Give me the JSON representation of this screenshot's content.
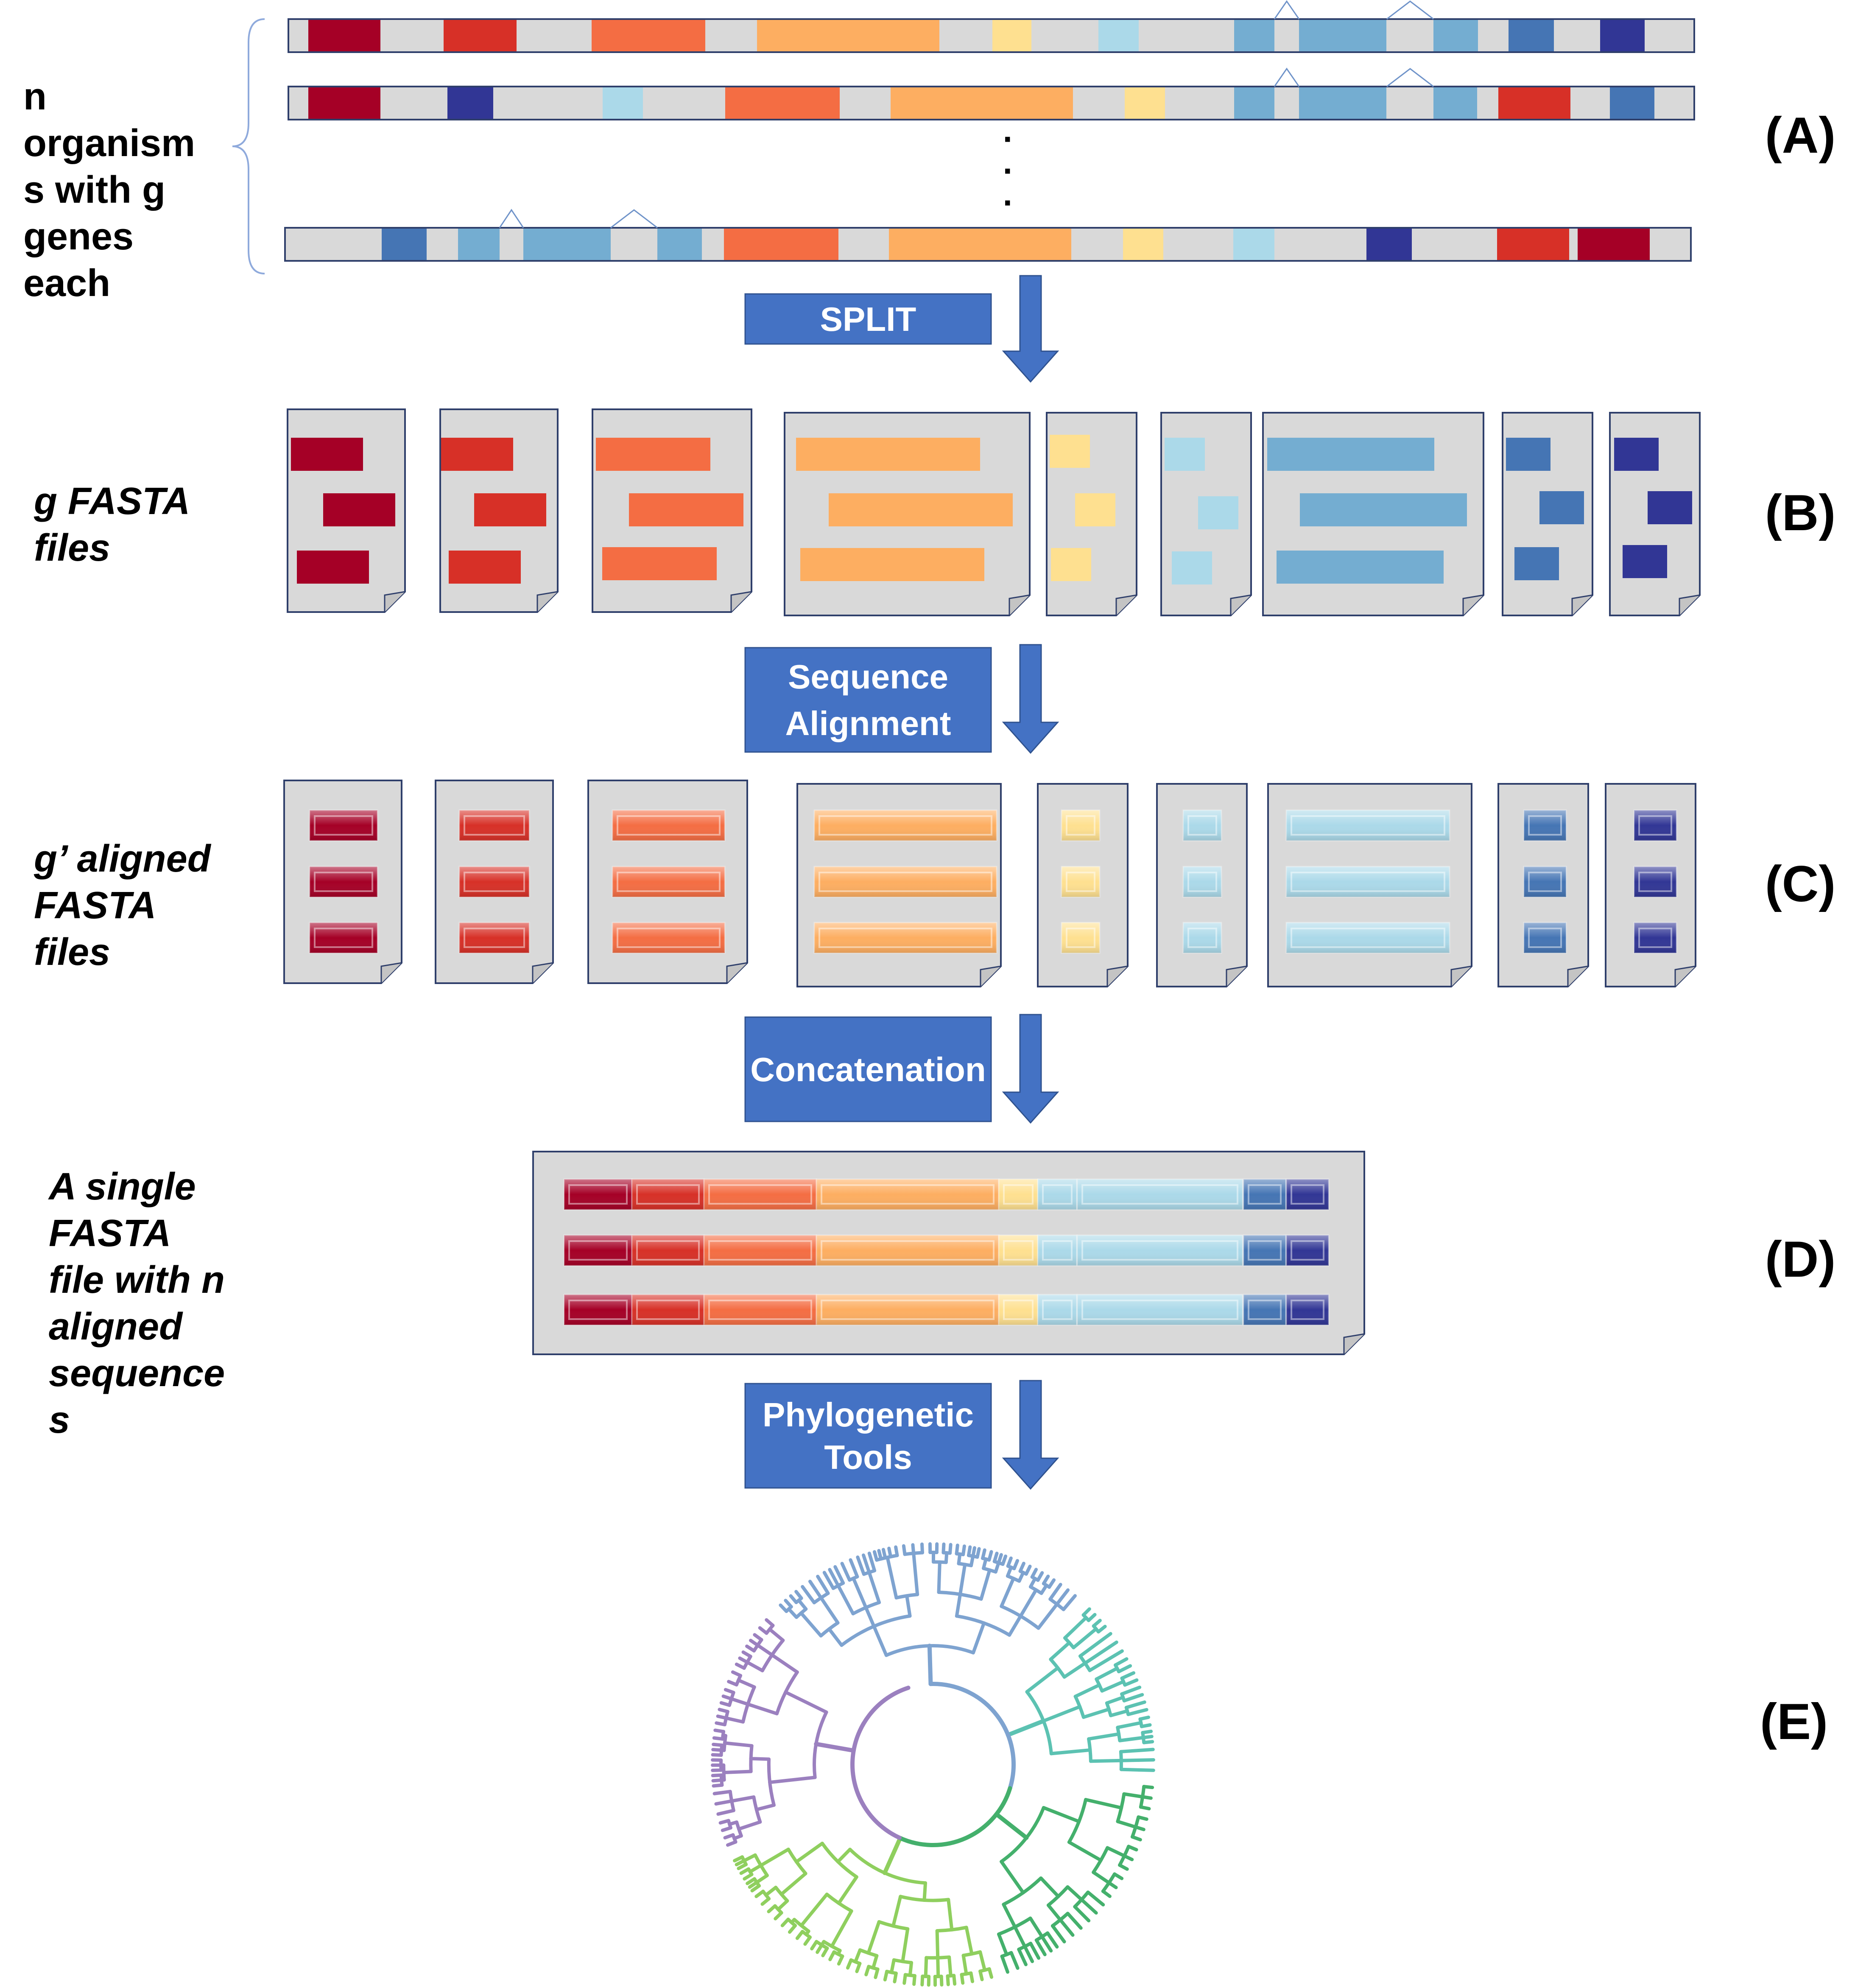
{
  "labels": {
    "panel_a": "(A)",
    "panel_b": "(B)",
    "panel_c": "(C)",
    "panel_d": "(D)",
    "panel_e": "(E)",
    "desc_a": [
      "n",
      "organism",
      "s with g",
      "genes",
      "each"
    ],
    "desc_b": [
      "g FASTA",
      "files"
    ],
    "desc_c": [
      "g’ aligned",
      "FASTA",
      "files"
    ],
    "desc_d": [
      "A single",
      "FASTA",
      "file with n",
      "aligned",
      "sequence",
      "s"
    ]
  },
  "steps": {
    "split": [
      "SPLIT"
    ],
    "align": [
      "Sequence",
      "Alignment"
    ],
    "concat": [
      "Concatenation"
    ],
    "phylo": [
      "Phylogenetic",
      "Tools"
    ]
  },
  "ellipsis": "·",
  "colors": {
    "gene_palette": [
      "#a50026",
      "#d73027",
      "#f46d43",
      "#fdae61",
      "#fee090",
      "#abd9e9",
      "#74add1",
      "#4575b4",
      "#313695"
    ],
    "genome_bar": "#d9d9d9",
    "file_fill": "#d9d9d9",
    "file_border": "#2f3f6b",
    "step_box": "#4472c4",
    "brace": "#8faadc",
    "tree_clades": [
      "#7ea3d0",
      "#5cc2b2",
      "#44b06c",
      "#8fcf5e",
      "#9b80bf"
    ]
  }
}
